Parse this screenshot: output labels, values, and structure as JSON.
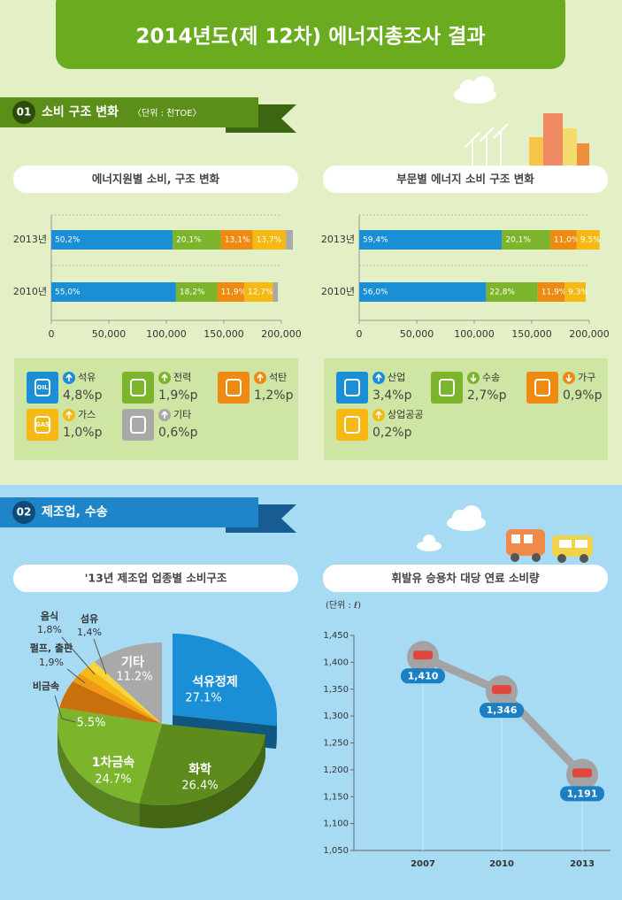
{
  "header": {
    "title": "2014년도(제 12차) 에너지총조사 결과"
  },
  "sections": [
    {
      "number": "01",
      "title": "소비 구조 변화",
      "unit": "〈단위 : 천TOE〉"
    },
    {
      "number": "02",
      "title": "제조업, 수송"
    }
  ],
  "chart_data": [
    {
      "type": "bar",
      "orientation": "horizontal",
      "stacked": true,
      "title": "에너지원별 소비, 구조 변화",
      "categories": [
        "2013년",
        "2010년"
      ],
      "xlim": [
        0,
        200000
      ],
      "xticks": [
        0,
        {
          "value": 50000,
          "label": "50,000"
        },
        {
          "value": 100000,
          "label": "100,000"
        },
        {
          "value": 150000,
          "label": "150,000"
        },
        {
          "value": 200000,
          "label": "200,000"
        }
      ],
      "series": [
        {
          "name": "석유",
          "color": "#1b8fd6",
          "values": [
            105400,
            108400
          ],
          "shares": [
            {
              "value": 50.2,
              "label": "50,2%"
            },
            {
              "value": 55.0,
              "label": "55,0%"
            }
          ],
          "change": {
            "value": 4.8,
            "label": "4,8%p"
          },
          "direction": "up",
          "icon_text": "OIL"
        },
        {
          "name": "전력",
          "color": "#7cb52c",
          "values": [
            42200,
            35900
          ],
          "shares": [
            {
              "value": 20.1,
              "label": "20,1%"
            },
            {
              "value": 18.2,
              "label": "18,2%"
            }
          ],
          "change": {
            "value": 1.9,
            "label": "1,9%p"
          },
          "direction": "up"
        },
        {
          "name": "석탄",
          "color": "#ee8a12",
          "values": [
            27500,
            23400
          ],
          "shares": [
            {
              "value": 13.1,
              "label": "13,1%"
            },
            {
              "value": 11.9,
              "label": "11,9%"
            }
          ],
          "change": {
            "value": 1.2,
            "label": "1,2%p"
          },
          "direction": "up"
        },
        {
          "name": "가스",
          "color": "#f6b914",
          "values": [
            28800,
            25000
          ],
          "shares": [
            {
              "value": 13.7,
              "label": "13,7%"
            },
            {
              "value": 12.7,
              "label": "12,7%"
            }
          ],
          "change": {
            "value": 1.0,
            "label": "1,0%p"
          },
          "direction": "up",
          "icon_text": "GAS"
        },
        {
          "name": "기타",
          "color": "#a9a9a9",
          "values": [
            6100,
            4300
          ],
          "shares": [
            null,
            null
          ],
          "change": {
            "value": 0.6,
            "label": "0,6%p"
          },
          "direction": "up"
        }
      ]
    },
    {
      "type": "bar",
      "orientation": "horizontal",
      "stacked": true,
      "title": "부문별 에너지 소비 구조 변화",
      "categories": [
        "2013년",
        "2010년"
      ],
      "xlim": [
        0,
        200000
      ],
      "xticks": [
        0,
        {
          "value": 50000,
          "label": "50,000"
        },
        {
          "value": 100000,
          "label": "100,000"
        },
        {
          "value": 150000,
          "label": "150,000"
        },
        {
          "value": 200000,
          "label": "200,000"
        }
      ],
      "series": [
        {
          "name": "산업",
          "color": "#1b8fd6",
          "values": [
            124100,
            110300
          ],
          "shares": [
            {
              "value": 59.4,
              "label": "59,4%"
            },
            {
              "value": 56.0,
              "label": "56,0%"
            }
          ],
          "change": {
            "value": 3.4,
            "label": "3,4%p"
          },
          "direction": "up"
        },
        {
          "name": "수송",
          "color": "#7cb52c",
          "values": [
            42000,
            44900
          ],
          "shares": [
            {
              "value": 20.1,
              "label": "20,1%"
            },
            {
              "value": 22.8,
              "label": "22,8%"
            }
          ],
          "change": {
            "value": 2.7,
            "label": "2,7%p"
          },
          "direction": "down"
        },
        {
          "name": "가구",
          "color": "#ee8a12",
          "values": [
            23000,
            23400
          ],
          "shares": [
            {
              "value": 11.0,
              "label": "11,0%"
            },
            {
              "value": 11.9,
              "label": "11,9%"
            }
          ],
          "change": {
            "value": 0.9,
            "label": "0,9%p"
          },
          "direction": "down"
        },
        {
          "name": "상업공공",
          "color": "#f6b914",
          "values": [
            19900,
            18300
          ],
          "shares": [
            {
              "value": 9.5,
              "label": "9,5%"
            },
            {
              "value": 9.3,
              "label": "9,3%"
            }
          ],
          "change": {
            "value": 0.2,
            "label": "0,2%p"
          },
          "direction": "up"
        }
      ]
    },
    {
      "type": "pie",
      "title": "'13년 제조업 업종별 소비구조",
      "categories": [
        "석유정제",
        "화학",
        "1차금속",
        "비금속",
        "펄프, 출판",
        "음식",
        "섬유",
        "기타"
      ],
      "values": [
        27.1,
        26.4,
        24.7,
        5.5,
        1.9,
        1.8,
        1.4,
        11.2
      ],
      "value_labels": [
        "27.1%",
        "26.4%",
        "24.7%",
        "5.5%",
        "1,9%",
        "1,8%",
        "1,4%",
        "11.2%"
      ],
      "colors": [
        "#1b8fd6",
        "#5e8c1c",
        "#7cb52c",
        "#c9700c",
        "#ef9a12",
        "#f6b914",
        "#f8d63a",
        "#a9a9a9"
      ]
    },
    {
      "type": "line",
      "title": "휘발유 승용차 대당 연료 소비량",
      "y_label": "(단위 : ℓ)",
      "categories": [
        "2007",
        "2010",
        "2013"
      ],
      "values": [
        1410,
        1346,
        1191
      ],
      "value_labels": [
        "1,410",
        "1,346",
        "1,191"
      ],
      "color": "#a3a3a3",
      "ylim": [
        1050,
        1450
      ],
      "yticks": [
        {
          "value": 1050,
          "label": "1,050"
        },
        {
          "value": 1100,
          "label": "1,100"
        },
        {
          "value": 1150,
          "label": "1,150"
        },
        {
          "value": 1200,
          "label": "1,200"
        },
        {
          "value": 1250,
          "label": "1,250"
        },
        {
          "value": 1300,
          "label": "1,300"
        },
        {
          "value": 1350,
          "label": "1,350"
        },
        {
          "value": 1400,
          "label": "1,400"
        },
        {
          "value": 1450,
          "label": "1,450"
        }
      ]
    }
  ]
}
